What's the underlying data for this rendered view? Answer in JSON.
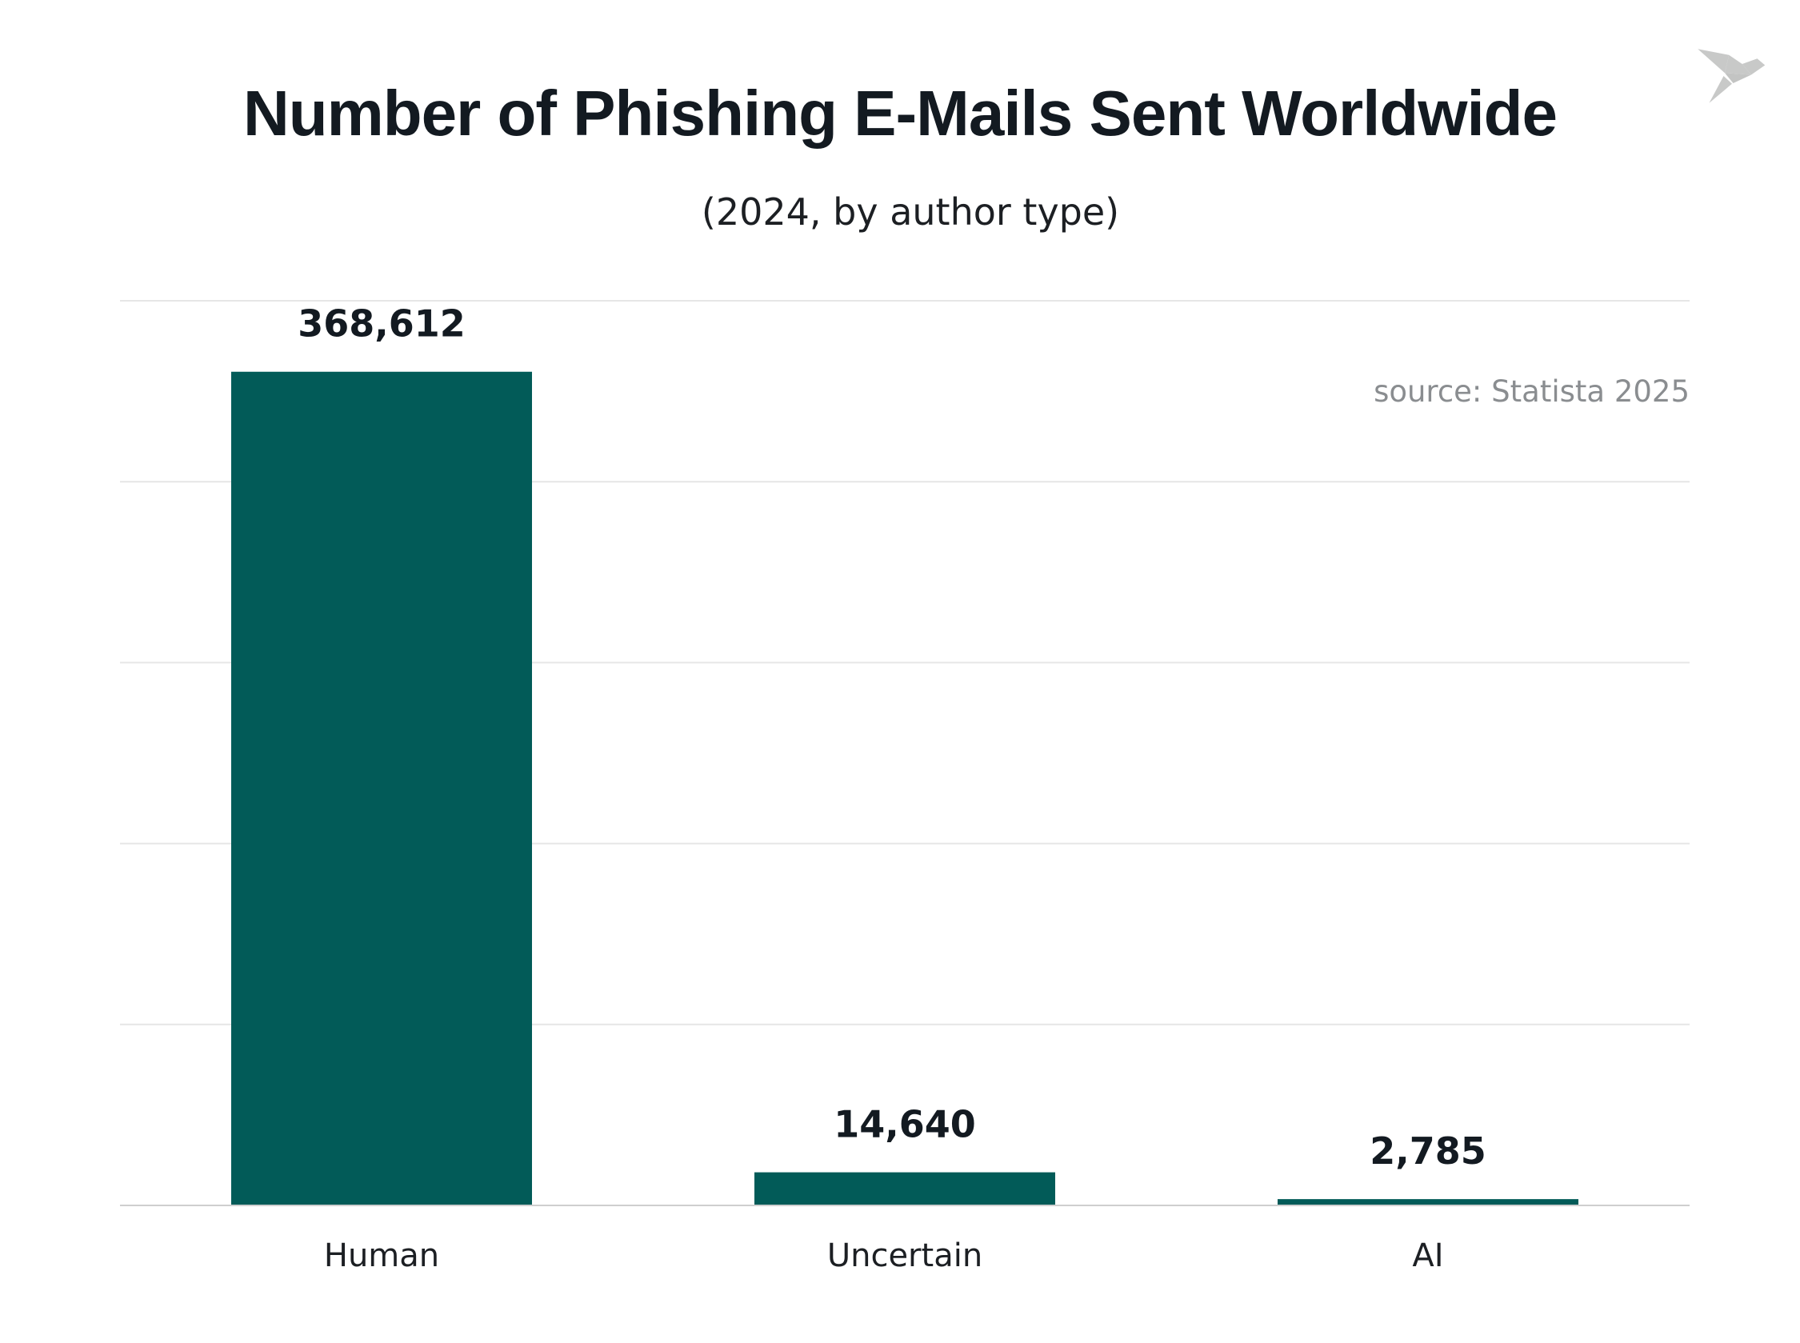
{
  "chart_data": {
    "type": "bar",
    "title": "Number of Phishing E-Mails Sent Worldwide",
    "subtitle": "(2024, by author type)",
    "source": "source: Statista 2025",
    "categories": [
      "Human",
      "Uncertain",
      "AI"
    ],
    "values": [
      368612,
      14640,
      2785
    ],
    "value_labels": [
      "368,612",
      "14,640",
      "2,785"
    ],
    "xlabel": "",
    "ylabel": "",
    "ylim": [
      0,
      400000
    ],
    "grid": true,
    "bar_color": "#025b58",
    "grid_color": "#e6e6e6"
  }
}
